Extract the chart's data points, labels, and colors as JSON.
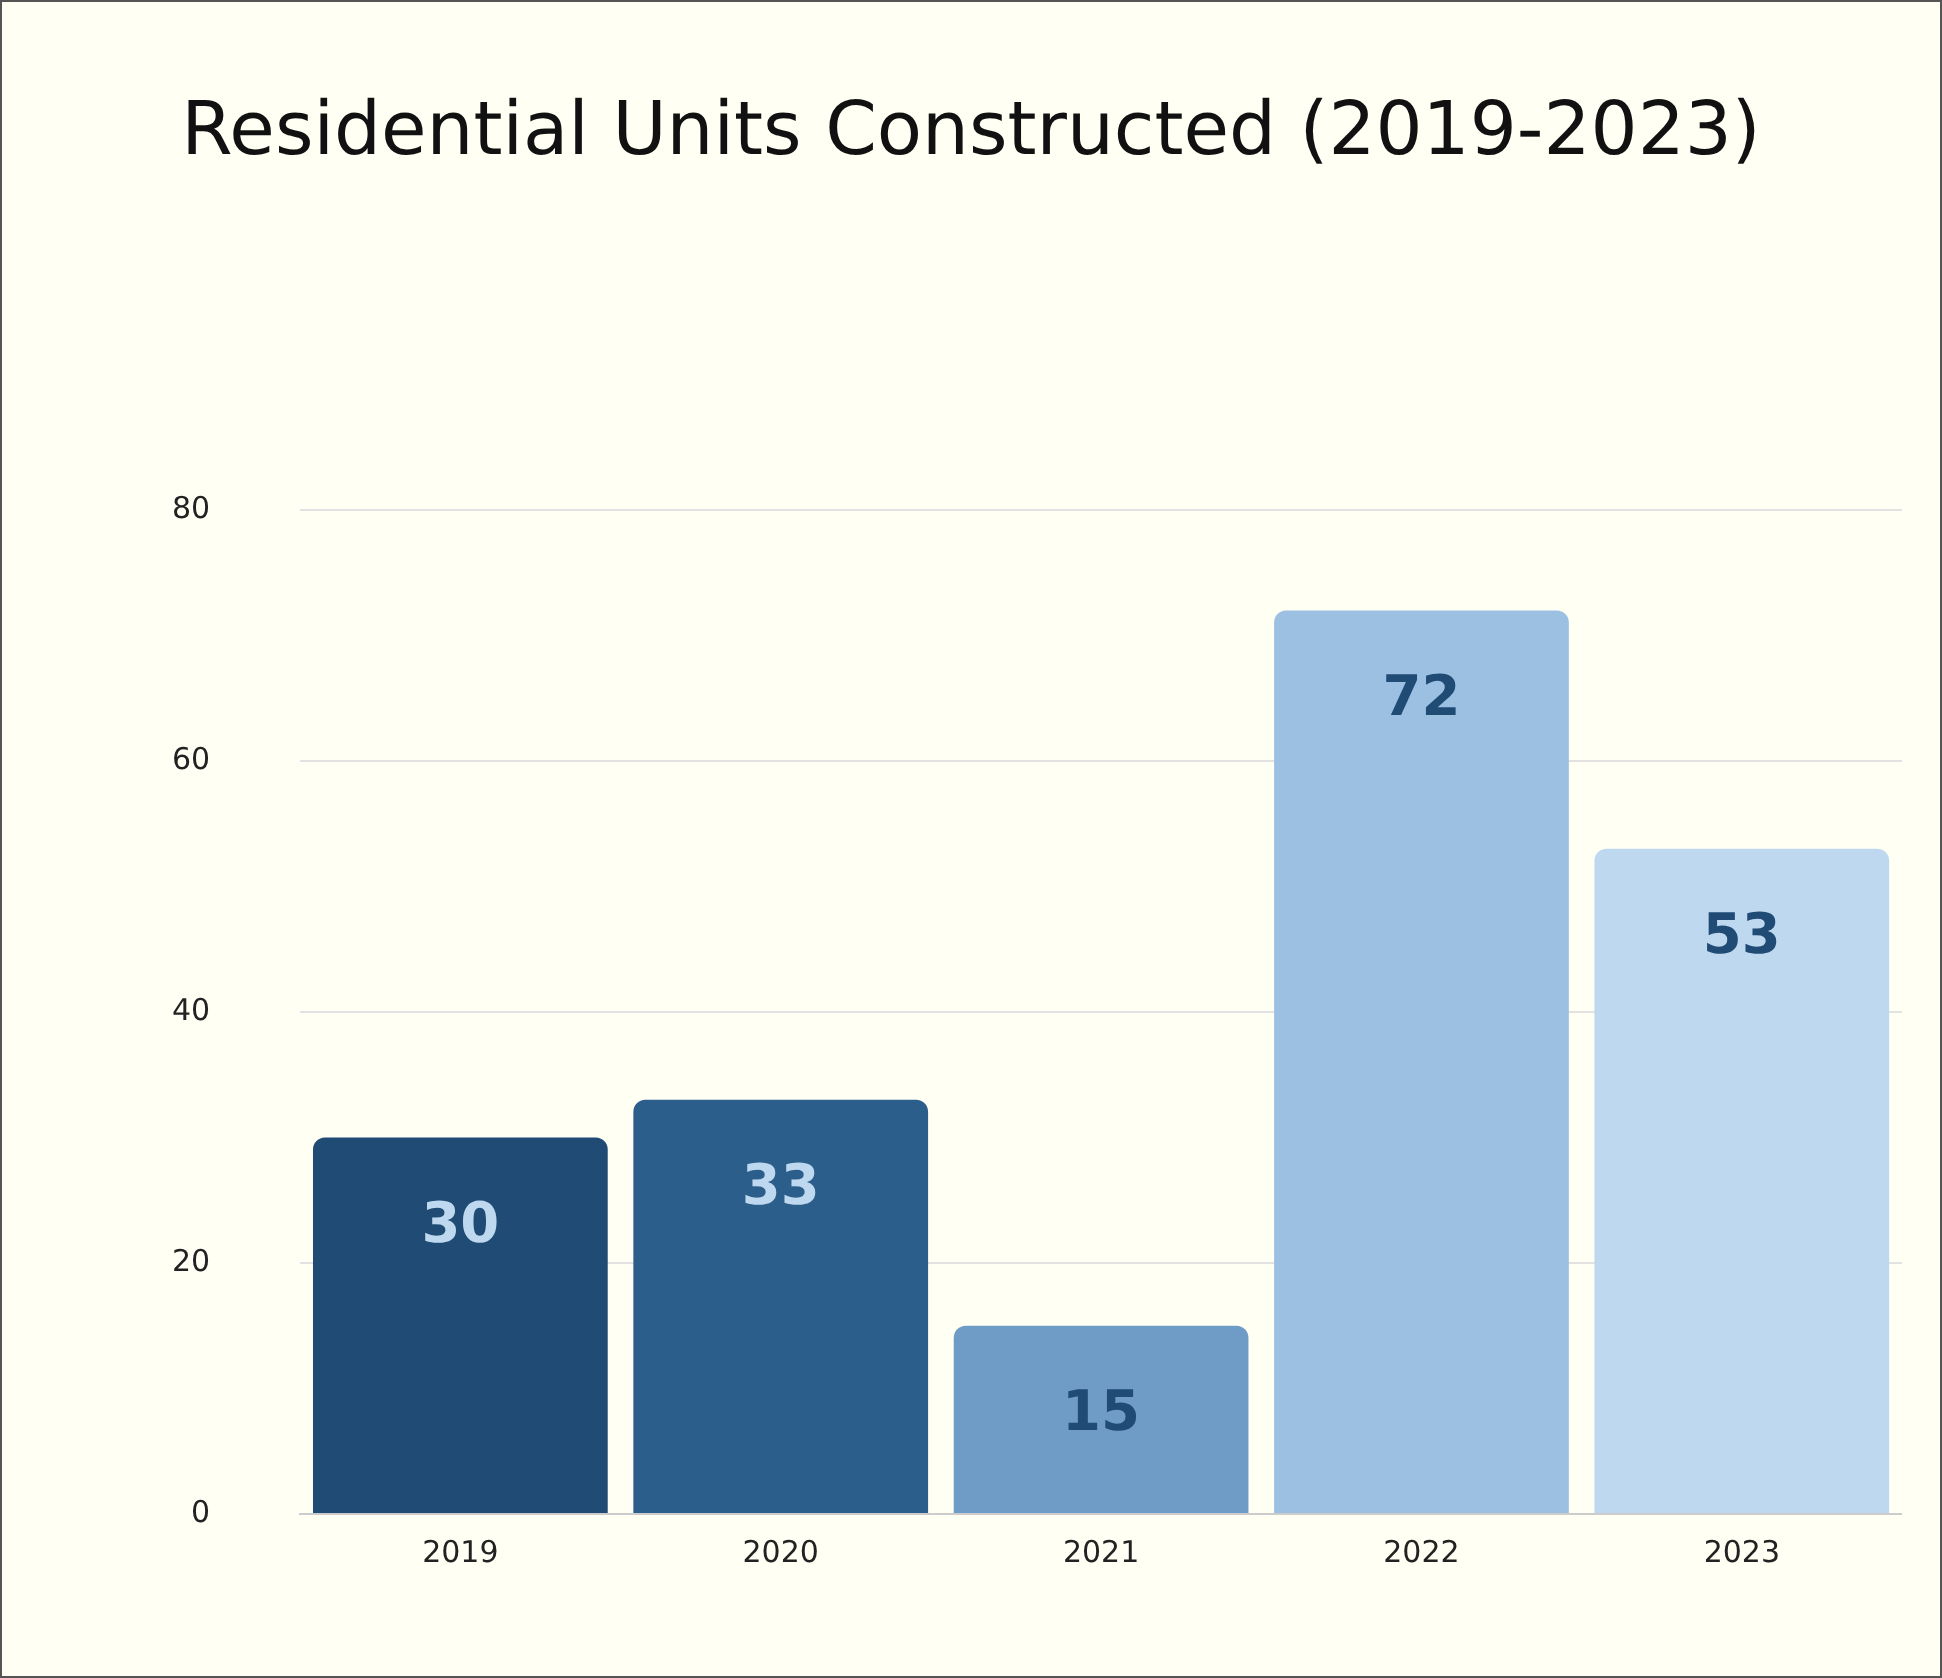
{
  "chart_data": {
    "type": "bar",
    "title": "Residential Units Constructed (2019-2023)",
    "categories": [
      "2019",
      "2020",
      "2021",
      "2022",
      "2023"
    ],
    "values": [
      30,
      33,
      15,
      72,
      53
    ],
    "colors": [
      "#1f4b74",
      "#2b5e8a",
      "#6f9cc6",
      "#9cc0e2",
      "#bed8ef"
    ],
    "ylim": [
      0,
      80
    ],
    "yticks": [
      0,
      20,
      40,
      60,
      80
    ],
    "grid": "y",
    "data_labels": true
  }
}
